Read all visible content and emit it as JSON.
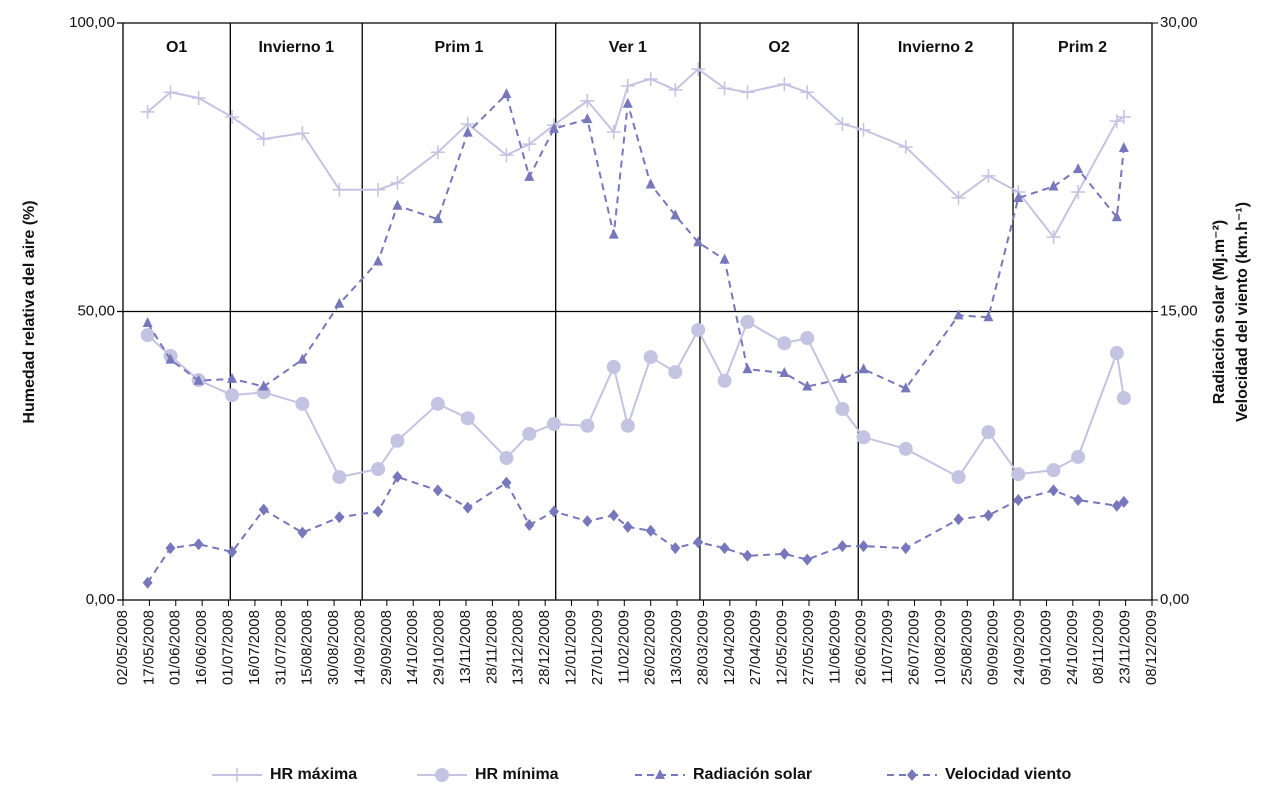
{
  "chart_data": {
    "type": "line",
    "y_label": "Humedad relativa del aire (%)",
    "y2_label": [
      "Radiación solar (Mj.m⁻²)",
      "Velocidad del viento (km.h⁻¹)"
    ],
    "xlim": [
      "02/05/2008",
      "08/12/2009"
    ],
    "xticks": [
      "02/05/2008",
      "17/05/2008",
      "01/06/2008",
      "16/06/2008",
      "01/07/2008",
      "16/07/2008",
      "31/07/2008",
      "15/08/2008",
      "30/08/2008",
      "14/09/2008",
      "29/09/2008",
      "14/10/2008",
      "29/10/2008",
      "13/11/2008",
      "28/11/2008",
      "13/12/2008",
      "28/12/2008",
      "12/01/2009",
      "27/01/2009",
      "11/02/2009",
      "26/02/2009",
      "13/03/2009",
      "28/03/2009",
      "12/04/2009",
      "27/04/2009",
      "12/05/2009",
      "27/05/2009",
      "11/06/2009",
      "26/06/2009",
      "11/07/2009",
      "26/07/2009",
      "10/08/2009",
      "25/08/2009",
      "09/09/2009",
      "24/09/2009",
      "09/10/2009",
      "24/10/2009",
      "08/11/2009",
      "23/11/2009",
      "08/12/2009"
    ],
    "ylim": [
      0,
      100
    ],
    "yticks": [
      {
        "value": 0,
        "label": "0,00"
      },
      {
        "value": 50,
        "label": "50,00"
      },
      {
        "value": 100,
        "label": "100,00"
      }
    ],
    "y2lim": [
      0,
      30
    ],
    "y2ticks": [
      {
        "value": 0,
        "label": "0,00"
      },
      {
        "value": 15,
        "label": "15,00"
      },
      {
        "value": 30,
        "label": "30,00"
      }
    ],
    "season_boundaries": [
      "02/07/2008",
      "15/09/2008",
      "03/01/2009",
      "26/03/2009",
      "24/06/2009",
      "20/09/2009"
    ],
    "season_labels": [
      "O1",
      "Invierno 1",
      "Prim 1",
      "Ver 1",
      "O2",
      "Invierno 2",
      "Prim 2"
    ],
    "x": [
      "16/05/2008",
      "29/05/2008",
      "14/06/2008",
      "03/07/2008",
      "21/07/2008",
      "12/08/2008",
      "02/09/2008",
      "24/09/2008",
      "05/10/2008",
      "28/10/2008",
      "14/11/2008",
      "06/12/2008",
      "19/12/2008",
      "02/01/2009",
      "21/01/2009",
      "05/02/2009",
      "13/02/2009",
      "26/02/2009",
      "12/03/2009",
      "25/03/2009",
      "09/04/2009",
      "22/04/2009",
      "13/05/2009",
      "26/05/2009",
      "15/06/2009",
      "27/06/2009",
      "21/07/2009",
      "20/08/2009",
      "06/09/2009",
      "23/09/2009",
      "13/10/2009",
      "27/10/2009",
      "18/11/2009",
      "22/11/2009"
    ],
    "series": [
      {
        "name": "HR máxima",
        "color": "#c3c3e2",
        "marker": "plus",
        "dashed": false,
        "values": [
          84.6,
          88.0,
          87.0,
          83.7,
          79.9,
          80.9,
          71.1,
          71.1,
          72.3,
          77.6,
          82.5,
          77.1,
          79.0,
          82.3,
          86.5,
          81.1,
          89.1,
          90.3,
          88.4,
          92.0,
          88.7,
          88.0,
          89.4,
          88.0,
          82.5,
          81.5,
          78.5,
          69.7,
          73.5,
          70.7,
          62.9,
          70.7,
          83.0,
          83.7
        ]
      },
      {
        "name": "HR mínima",
        "color": "#c3c3e2",
        "marker": "circle",
        "dashed": false,
        "values": [
          45.9,
          42.3,
          38.1,
          35.5,
          36.0,
          34.0,
          21.3,
          22.7,
          27.6,
          34.0,
          31.5,
          24.6,
          28.8,
          30.5,
          30.2,
          40.4,
          30.2,
          42.1,
          39.5,
          46.8,
          38.0,
          48.2,
          44.5,
          45.4,
          33.1,
          28.2,
          26.2,
          21.3,
          29.1,
          21.8,
          22.5,
          24.8,
          42.8,
          35.0
        ]
      },
      {
        "name": "Radiación solar",
        "color": "#7777bb",
        "marker": "triangle",
        "dashed": true,
        "axis": "y2",
        "values": [
          14.4,
          12.5,
          11.4,
          11.5,
          11.1,
          12.5,
          15.4,
          17.6,
          20.5,
          19.8,
          24.3,
          26.3,
          22.0,
          24.5,
          25.0,
          19.0,
          25.8,
          21.6,
          20.0,
          18.6,
          17.7,
          12.0,
          11.8,
          11.1,
          11.5,
          12.0,
          11.0,
          14.8,
          14.7,
          20.9,
          21.5,
          22.4,
          19.9,
          23.5
        ]
      },
      {
        "name": "Velocidad viento",
        "color": "#7777bb",
        "marker": "diamond",
        "dashed": true,
        "axis": "y2",
        "values": [
          0.9,
          2.7,
          2.9,
          2.5,
          4.7,
          3.5,
          4.3,
          4.6,
          6.4,
          5.7,
          4.8,
          6.1,
          3.9,
          4.6,
          4.1,
          4.4,
          3.8,
          3.6,
          2.7,
          3.0,
          2.7,
          2.3,
          2.4,
          2.1,
          2.8,
          2.8,
          2.7,
          4.2,
          4.4,
          5.2,
          5.7,
          5.2,
          4.9,
          5.1
        ]
      }
    ]
  }
}
